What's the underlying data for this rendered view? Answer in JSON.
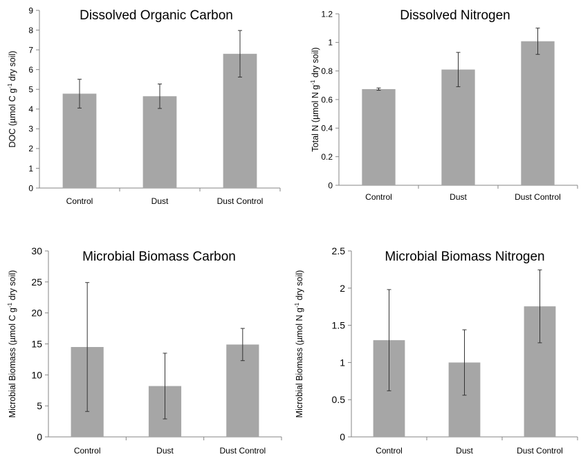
{
  "chart_data": [
    {
      "type": "bar",
      "title": "Dissolved Organic Carbon",
      "categories": [
        "Control",
        "Dust",
        "Dust Control"
      ],
      "values": [
        4.78,
        4.65,
        6.8
      ],
      "errors": [
        0.73,
        0.62,
        1.18
      ],
      "ylim": [
        0,
        9
      ],
      "yticks": [
        "0",
        "1",
        "2",
        "3",
        "4",
        "5",
        "6",
        "7",
        "8",
        "9"
      ],
      "ylabel": {
        "pre": "DOC (µmol C g",
        "sup": "-1",
        "post": " dry soil)"
      },
      "bar_color": "#a6a6a6",
      "xlabel": ""
    },
    {
      "type": "bar",
      "title": "Dissolved Nitrogen",
      "categories": [
        "Control",
        "Dust",
        "Dust Control"
      ],
      "values": [
        0.673,
        0.81,
        1.008
      ],
      "errors": [
        0.008,
        0.12,
        0.092
      ],
      "ylim": [
        0,
        1.2
      ],
      "yticks": [
        "0",
        "0.2",
        "0.4",
        "0.6",
        "0.8",
        "1",
        "1.2"
      ],
      "ylabel": {
        "pre": "Total N (µmol N g",
        "sup": "-1",
        "post": " dry soil)"
      },
      "bar_color": "#a6a6a6",
      "xlabel": ""
    },
    {
      "type": "bar",
      "title": "Microbial Biomass Carbon",
      "categories": [
        "Control",
        "Dust",
        "Dust Control"
      ],
      "values": [
        14.5,
        8.2,
        14.9
      ],
      "errors": [
        10.4,
        5.3,
        2.6
      ],
      "ylim": [
        0,
        30
      ],
      "yticks": [
        "0",
        "5",
        "10",
        "15",
        "20",
        "25",
        "30"
      ],
      "ylabel": {
        "pre": "Microbial Biomass (µmol C g",
        "sup": "-1",
        "post": " dry soil)"
      },
      "bar_color": "#a6a6a6",
      "xlabel": ""
    },
    {
      "type": "bar",
      "title": "Microbial Biomass Nitrogen",
      "categories": [
        "Control",
        "Dust",
        "Dust Control"
      ],
      "values": [
        1.3,
        1.0,
        1.755
      ],
      "errors": [
        0.68,
        0.44,
        0.49
      ],
      "ylim": [
        0,
        2.5
      ],
      "yticks": [
        "0",
        "0.5",
        "1",
        "1.5",
        "2",
        "2.5"
      ],
      "ylabel": {
        "pre": "Microbial Biomass (µmol N g",
        "sup": "-1",
        "post": " dry soil)"
      },
      "bar_color": "#a6a6a6",
      "xlabel": ""
    }
  ]
}
